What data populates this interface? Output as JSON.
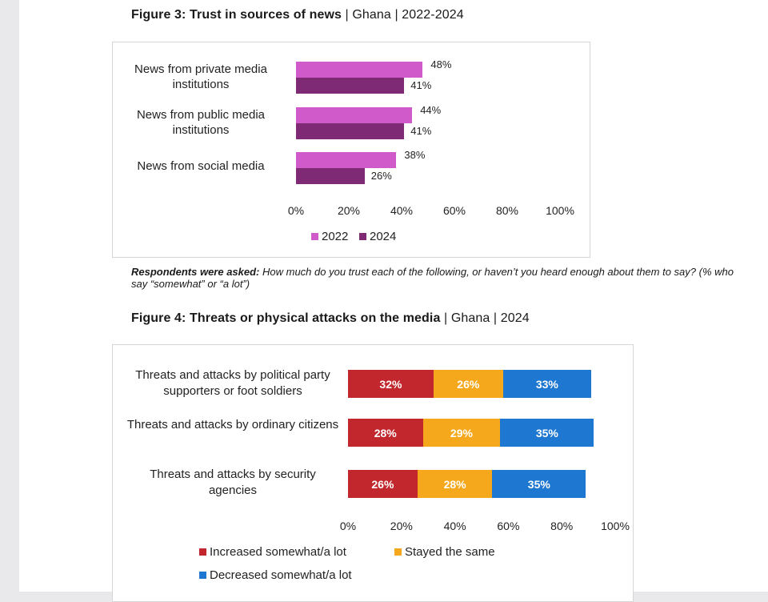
{
  "figure3": {
    "title_bold": "Figure 3: Trust in sources of news",
    "title_rest": [
      " | ",
      "Ghana",
      " | ",
      "2022-2024"
    ]
  },
  "figure4": {
    "title_bold": "Figure 4: Threats or physical attacks on the media",
    "title_rest": [
      " | ",
      "Ghana",
      " | ",
      "2024"
    ]
  },
  "note": {
    "prefix": "Respondents were asked:",
    "text": " How much do you trust each of the following, or haven’t you heard enough about them to say? (% who say “somewhat” or “a lot”)"
  },
  "colors": {
    "2022": "#d05ac9",
    "2024": "#7f2a75",
    "increased": "#c1272d",
    "stayed": "#f5a81c",
    "decreased": "#1e77d1"
  },
  "chart_data": [
    {
      "type": "bar",
      "orientation": "horizontal",
      "title": "Figure 3: Trust in sources of news | Ghana | 2022-2024",
      "categories": [
        "News from private media institutions",
        "News from public media institutions",
        "News from social media"
      ],
      "series": [
        {
          "name": "2022",
          "values": [
            48,
            44,
            38
          ]
        },
        {
          "name": "2024",
          "values": [
            41,
            41,
            26
          ]
        }
      ],
      "value_labels": [
        [
          "48%",
          "44%",
          "38%"
        ],
        [
          "41%",
          "41%",
          "26%"
        ]
      ],
      "xlim": [
        0,
        100
      ],
      "xticks": [
        "0%",
        "20%",
        "40%",
        "60%",
        "80%",
        "100%"
      ],
      "legend": "bottom",
      "grid": false
    },
    {
      "type": "bar",
      "orientation": "horizontal",
      "stacked": true,
      "title": "Figure 4: Threats or physical attacks on the media | Ghana | 2024",
      "categories": [
        "Threats and attacks by political party supporters or foot soldiers",
        "Threats and attacks by ordinary citizens",
        "Threats and attacks by security agencies"
      ],
      "series": [
        {
          "name": "Increased somewhat/a lot",
          "values": [
            32,
            28,
            26
          ]
        },
        {
          "name": "Stayed the same",
          "values": [
            26,
            29,
            28
          ]
        },
        {
          "name": "Decreased somewhat/a lot",
          "values": [
            33,
            35,
            35
          ]
        }
      ],
      "value_labels": [
        [
          "32%",
          "28%",
          "26%"
        ],
        [
          "26%",
          "29%",
          "28%"
        ],
        [
          "33%",
          "35%",
          "35%"
        ]
      ],
      "xlim": [
        0,
        100
      ],
      "xticks": [
        "0%",
        "20%",
        "40%",
        "60%",
        "80%",
        "100%"
      ],
      "legend": "bottom",
      "grid": false
    }
  ]
}
